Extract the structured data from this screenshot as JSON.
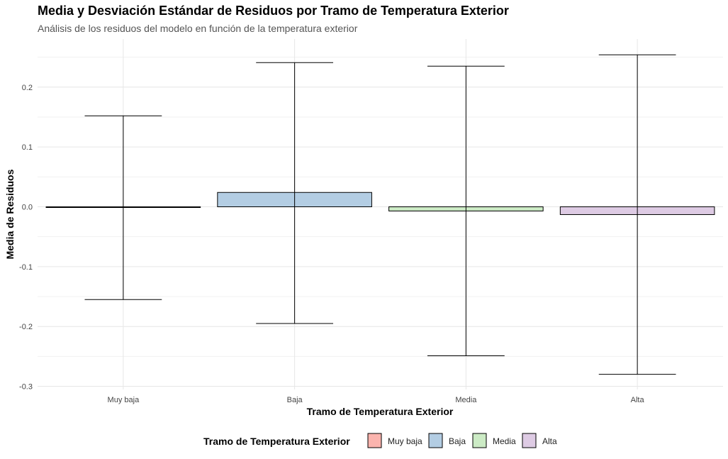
{
  "chart_data": {
    "type": "bar",
    "title": "Media y Desviación Estándar de Residuos por Tramo de Temperatura Exterior",
    "subtitle": "Análisis de los residuos del modelo en función de la temperatura exterior",
    "xlabel": "Tramo de Temperatura Exterior",
    "ylabel": "Media de Residuos",
    "categories": [
      "Muy baja",
      "Baja",
      "Media",
      "Alta"
    ],
    "values": [
      -0.001,
      0.024,
      -0.007,
      -0.013
    ],
    "error_low": [
      -0.155,
      -0.195,
      -0.249,
      -0.28
    ],
    "error_high": [
      0.152,
      0.241,
      0.235,
      0.254
    ],
    "colors": [
      "#FBB4AE",
      "#B3CDE3",
      "#CCEBC5",
      "#DECBE4"
    ],
    "ylim": [
      -0.31,
      0.26
    ],
    "yticks": [
      -0.3,
      -0.2,
      -0.1,
      0.0,
      0.1,
      0.2
    ],
    "ytick_labels": [
      "-0.3",
      "-0.2",
      "-0.1",
      "0.0",
      "0.1",
      "0.2"
    ],
    "grid": true,
    "legend": {
      "title": "Tramo de Temperatura Exterior",
      "position": "bottom",
      "entries": [
        "Muy baja",
        "Baja",
        "Media",
        "Alta"
      ]
    }
  }
}
